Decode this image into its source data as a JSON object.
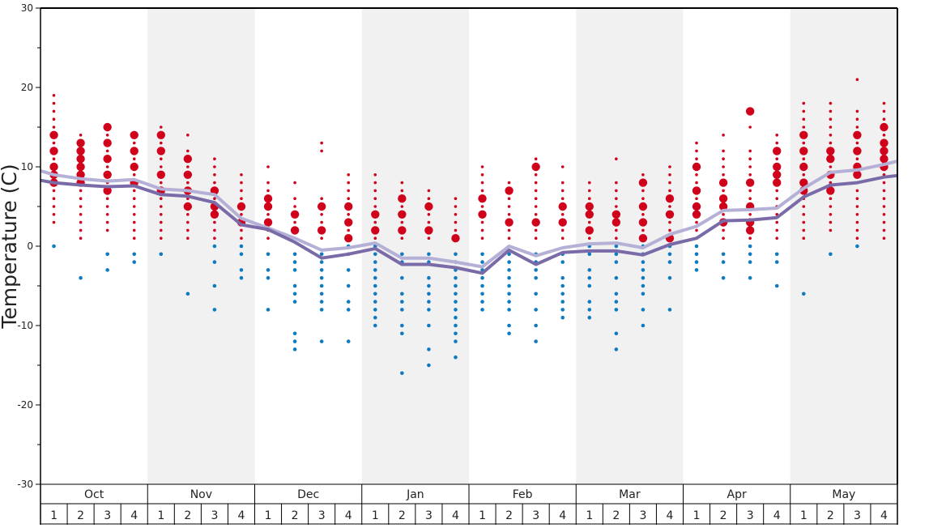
{
  "chart_data": {
    "type": "scatter",
    "ylabel": "Temperature (C)",
    "ylim": [
      -30,
      30
    ],
    "ytick_labels": [
      "30",
      "20",
      "10",
      "0",
      "-10",
      "-20",
      "-30"
    ],
    "ytick_values": [
      30,
      20,
      10,
      0,
      -10,
      -20,
      -30
    ],
    "months": [
      "Oct",
      "Nov",
      "Dec",
      "Jan",
      "Feb",
      "Mar",
      "Apr",
      "May"
    ],
    "weeks": [
      "1",
      "2",
      "3",
      "4"
    ],
    "grid": false,
    "colors": {
      "warm": "#d0021b",
      "cold": "#0e7ac1",
      "line_light": "#b4b0d6",
      "line_dark": "#7a6ba8",
      "shade": "#f1f1f1"
    },
    "series": [
      {
        "values": [
          9.5,
          9.0,
          8.5,
          8.2,
          8.4,
          7.2,
          7.0,
          6.5,
          3.5,
          2.3,
          1.0,
          -0.5,
          -0.2,
          0.4,
          -1.5,
          -1.5,
          -2.0,
          -2.6,
          0.0,
          -1.2,
          -0.2,
          0.3,
          0.4,
          -0.2,
          1.5,
          2.5,
          4.5,
          4.6,
          4.8,
          7.3,
          9.3,
          9.6,
          10.3,
          10.7
        ]
      },
      {
        "values": [
          8.3,
          8.0,
          7.7,
          7.5,
          7.6,
          6.5,
          6.3,
          5.5,
          2.7,
          2.1,
          0.5,
          -1.5,
          -1.0,
          -0.3,
          -2.3,
          -2.3,
          -2.7,
          -3.4,
          -0.5,
          -2.3,
          -0.8,
          -0.6,
          -0.6,
          -1.1,
          0.2,
          1.0,
          3.2,
          3.3,
          3.6,
          6.2,
          7.7,
          8.0,
          8.7,
          8.9
        ]
      }
    ],
    "observations": [
      {
        "ys": [
          19,
          18,
          17,
          16,
          15,
          14,
          13,
          12,
          11,
          10,
          9,
          8,
          7,
          6,
          5,
          4,
          3
        ],
        "big": [
          14,
          12,
          10,
          9,
          8
        ],
        "warm_lo": 3,
        "cold": [
          0
        ]
      },
      {
        "ys": [
          14,
          13,
          12,
          11,
          10,
          9,
          8,
          7,
          6,
          5,
          4,
          3,
          2,
          1
        ],
        "big": [
          13,
          12,
          11,
          10,
          9,
          8
        ],
        "warm_lo": 1,
        "cold": [
          -4
        ]
      },
      {
        "ys": [
          15,
          14,
          13,
          12,
          11,
          10,
          9,
          8,
          7,
          6,
          5,
          4,
          3,
          2
        ],
        "big": [
          15,
          13,
          11,
          9,
          7
        ],
        "warm_lo": 2,
        "cold": [
          -1,
          -3
        ]
      },
      {
        "ys": [
          14,
          13,
          12,
          11,
          10,
          9,
          8,
          7,
          6,
          5,
          4,
          3,
          2,
          1
        ],
        "big": [
          14,
          12,
          10,
          8
        ],
        "warm_lo": 1,
        "cold": [
          -1,
          -2
        ]
      },
      {
        "ys": [
          15,
          14,
          13,
          12,
          11,
          10,
          9,
          8,
          7,
          6,
          5,
          4,
          3,
          2,
          1
        ],
        "big": [
          14,
          12,
          9,
          7
        ],
        "warm_lo": 1,
        "cold": [
          -1
        ]
      },
      {
        "ys": [
          14,
          12,
          11,
          10,
          9,
          8,
          7,
          6,
          5,
          4,
          3,
          2,
          1
        ],
        "big": [
          11,
          9,
          7,
          5
        ],
        "warm_lo": 1,
        "cold": [
          -6
        ]
      },
      {
        "ys": [
          11,
          10,
          9,
          8,
          7,
          6,
          5,
          4,
          3,
          2,
          1
        ],
        "big": [
          7,
          5,
          4
        ],
        "warm_lo": 1,
        "cold": [
          0,
          -2,
          -5,
          -8
        ]
      },
      {
        "ys": [
          9,
          8,
          7,
          6,
          5,
          4,
          3,
          2,
          1
        ],
        "big": [
          5,
          3
        ],
        "warm_lo": 1,
        "cold": [
          0,
          -1,
          -3,
          -4
        ]
      },
      {
        "ys": [
          10,
          8,
          7,
          6,
          5,
          4,
          3,
          2,
          1
        ],
        "big": [
          6,
          5,
          3
        ],
        "warm_lo": 1,
        "cold": [
          -1,
          -3,
          -4,
          -8
        ]
      },
      {
        "ys": [
          8,
          6,
          5,
          4,
          3,
          2,
          1
        ],
        "big": [
          4,
          2
        ],
        "warm_lo": 1,
        "cold": [
          -1,
          -2,
          -3,
          -5,
          -6,
          -7,
          -11,
          -12,
          -13
        ]
      },
      {
        "ys": [
          13,
          12,
          6,
          5,
          4,
          3,
          2,
          1
        ],
        "big": [
          5,
          2
        ],
        "warm_lo": 1,
        "cold": [
          -1,
          -2,
          -3,
          -4,
          -5,
          -6,
          -7,
          -8,
          -12
        ]
      },
      {
        "ys": [
          9,
          8,
          7,
          6,
          5,
          4,
          3,
          2,
          1
        ],
        "big": [
          5,
          3,
          1
        ],
        "warm_lo": 1,
        "cold": [
          0,
          -1,
          -3,
          -5,
          -7,
          -8,
          -12
        ]
      },
      {
        "ys": [
          9,
          8,
          7,
          6,
          5,
          4,
          3,
          2,
          1
        ],
        "big": [
          4,
          2
        ],
        "warm_lo": 1,
        "cold": [
          0,
          -1,
          -2,
          -3,
          -4,
          -5,
          -6,
          -7,
          -8,
          -9,
          -10
        ]
      },
      {
        "ys": [
          8,
          7,
          6,
          5,
          4,
          3,
          2,
          1
        ],
        "big": [
          6,
          4,
          2
        ],
        "warm_lo": 1,
        "cold": [
          -1,
          -2,
          -4,
          -6,
          -7,
          -8,
          -10,
          -11,
          -16
        ]
      },
      {
        "ys": [
          7,
          6,
          5,
          4,
          3,
          2,
          1
        ],
        "big": [
          5,
          2
        ],
        "warm_lo": 1,
        "cold": [
          -1,
          -2,
          -4,
          -5,
          -6,
          -7,
          -8,
          -10,
          -13,
          -15
        ]
      },
      {
        "ys": [
          6,
          5,
          4,
          3,
          2,
          1
        ],
        "big": [
          1
        ],
        "warm_lo": 1,
        "cold": [
          -1,
          -2,
          -3,
          -4,
          -5,
          -6,
          -7,
          -8,
          -9,
          -10,
          -11,
          -12,
          -14
        ]
      },
      {
        "ys": [
          10,
          9,
          8,
          7,
          6,
          5,
          4,
          3,
          2,
          1
        ],
        "big": [
          6,
          4
        ],
        "warm_lo": 1,
        "cold": [
          -1,
          -2,
          -3,
          -4,
          -5,
          -6,
          -7,
          -8
        ]
      },
      {
        "ys": [
          8,
          7,
          6,
          5,
          4,
          3,
          2,
          1
        ],
        "big": [
          7,
          3
        ],
        "warm_lo": 1,
        "cold": [
          -1,
          -2,
          -3,
          -4,
          -5,
          -6,
          -7,
          -8,
          -10,
          -11
        ]
      },
      {
        "ys": [
          11,
          10,
          9,
          8,
          7,
          6,
          5,
          4,
          3,
          2,
          1
        ],
        "big": [
          10,
          3
        ],
        "warm_lo": 1,
        "cold": [
          -1,
          -2,
          -3,
          -4,
          -6,
          -8,
          -10,
          -12
        ]
      },
      {
        "ys": [
          10,
          8,
          7,
          6,
          5,
          4,
          3,
          2,
          1
        ],
        "big": [
          5,
          3
        ],
        "warm_lo": 1,
        "cold": [
          -1,
          -2,
          -4,
          -5,
          -6,
          -7,
          -8,
          -9
        ]
      },
      {
        "ys": [
          8,
          7,
          6,
          5,
          4,
          3,
          2,
          1
        ],
        "big": [
          5,
          4,
          2
        ],
        "warm_lo": 1,
        "cold": [
          0,
          -1,
          -3,
          -4,
          -5,
          -7,
          -8,
          -9
        ]
      },
      {
        "ys": [
          11,
          8,
          7,
          6,
          5,
          4,
          3,
          2,
          1
        ],
        "big": [
          4,
          3
        ],
        "warm_lo": 1,
        "cold": [
          0,
          -1,
          -2,
          -4,
          -6,
          -7,
          -8,
          -11,
          -13
        ]
      },
      {
        "ys": [
          9,
          8,
          7,
          6,
          5,
          4,
          3,
          2,
          1
        ],
        "big": [
          8,
          5,
          3,
          1
        ],
        "warm_lo": 1,
        "cold": [
          0,
          -1,
          -2,
          -3,
          -4,
          -5,
          -6,
          -8,
          -10
        ]
      },
      {
        "ys": [
          10,
          9,
          8,
          7,
          6,
          5,
          4,
          3,
          2,
          1
        ],
        "big": [
          6,
          4,
          1
        ],
        "warm_lo": 1,
        "cold": [
          0,
          -1,
          -2,
          -4,
          -8
        ]
      },
      {
        "ys": [
          13,
          12,
          11,
          10,
          9,
          8,
          7,
          6,
          5,
          4,
          3,
          2,
          1
        ],
        "big": [
          10,
          7,
          5,
          4
        ],
        "warm_lo": 1,
        "cold": [
          0,
          -1,
          -2,
          -3
        ]
      },
      {
        "ys": [
          14,
          12,
          11,
          10,
          9,
          8,
          7,
          6,
          5,
          4,
          3,
          2,
          1
        ],
        "big": [
          8,
          6,
          5,
          3
        ],
        "warm_lo": 1,
        "cold": [
          -1,
          -2,
          -4
        ]
      },
      {
        "ys": [
          17,
          15,
          12,
          11,
          10,
          9,
          8,
          7,
          6,
          5,
          4,
          3,
          2,
          1
        ],
        "big": [
          17,
          8,
          5,
          3,
          2
        ],
        "warm_lo": 1,
        "cold": [
          0,
          -1,
          -2,
          -4
        ]
      },
      {
        "ys": [
          14,
          13,
          12,
          11,
          10,
          9,
          8,
          7,
          6,
          5,
          4,
          3,
          2,
          1
        ],
        "big": [
          12,
          10,
          9,
          8
        ],
        "warm_lo": 1,
        "cold": [
          -1,
          -2,
          -5
        ]
      },
      {
        "ys": [
          18,
          17,
          16,
          15,
          14,
          13,
          12,
          11,
          10,
          9,
          8,
          7,
          6,
          5,
          4,
          3,
          2,
          1
        ],
        "big": [
          14,
          12,
          10,
          8,
          7
        ],
        "warm_lo": 1,
        "cold": [
          -6
        ]
      },
      {
        "ys": [
          18,
          17,
          16,
          15,
          14,
          13,
          12,
          11,
          10,
          9,
          8,
          7,
          6,
          5,
          4,
          3,
          2
        ],
        "big": [
          12,
          11,
          9,
          7
        ],
        "warm_lo": 2,
        "cold": [
          -1
        ]
      },
      {
        "ys": [
          21,
          17,
          16,
          15,
          14,
          13,
          12,
          11,
          10,
          9,
          8,
          7,
          6,
          5,
          4,
          3,
          2,
          1
        ],
        "big": [
          14,
          12,
          10,
          9
        ],
        "warm_lo": 1,
        "cold": [
          0
        ]
      },
      {
        "ys": [
          18,
          17,
          16,
          15,
          14,
          13,
          12,
          11,
          10,
          9,
          8,
          7,
          6,
          5,
          4,
          3,
          2,
          1
        ],
        "big": [
          15,
          13,
          12,
          11,
          10
        ],
        "warm_lo": 1,
        "cold": []
      }
    ]
  }
}
